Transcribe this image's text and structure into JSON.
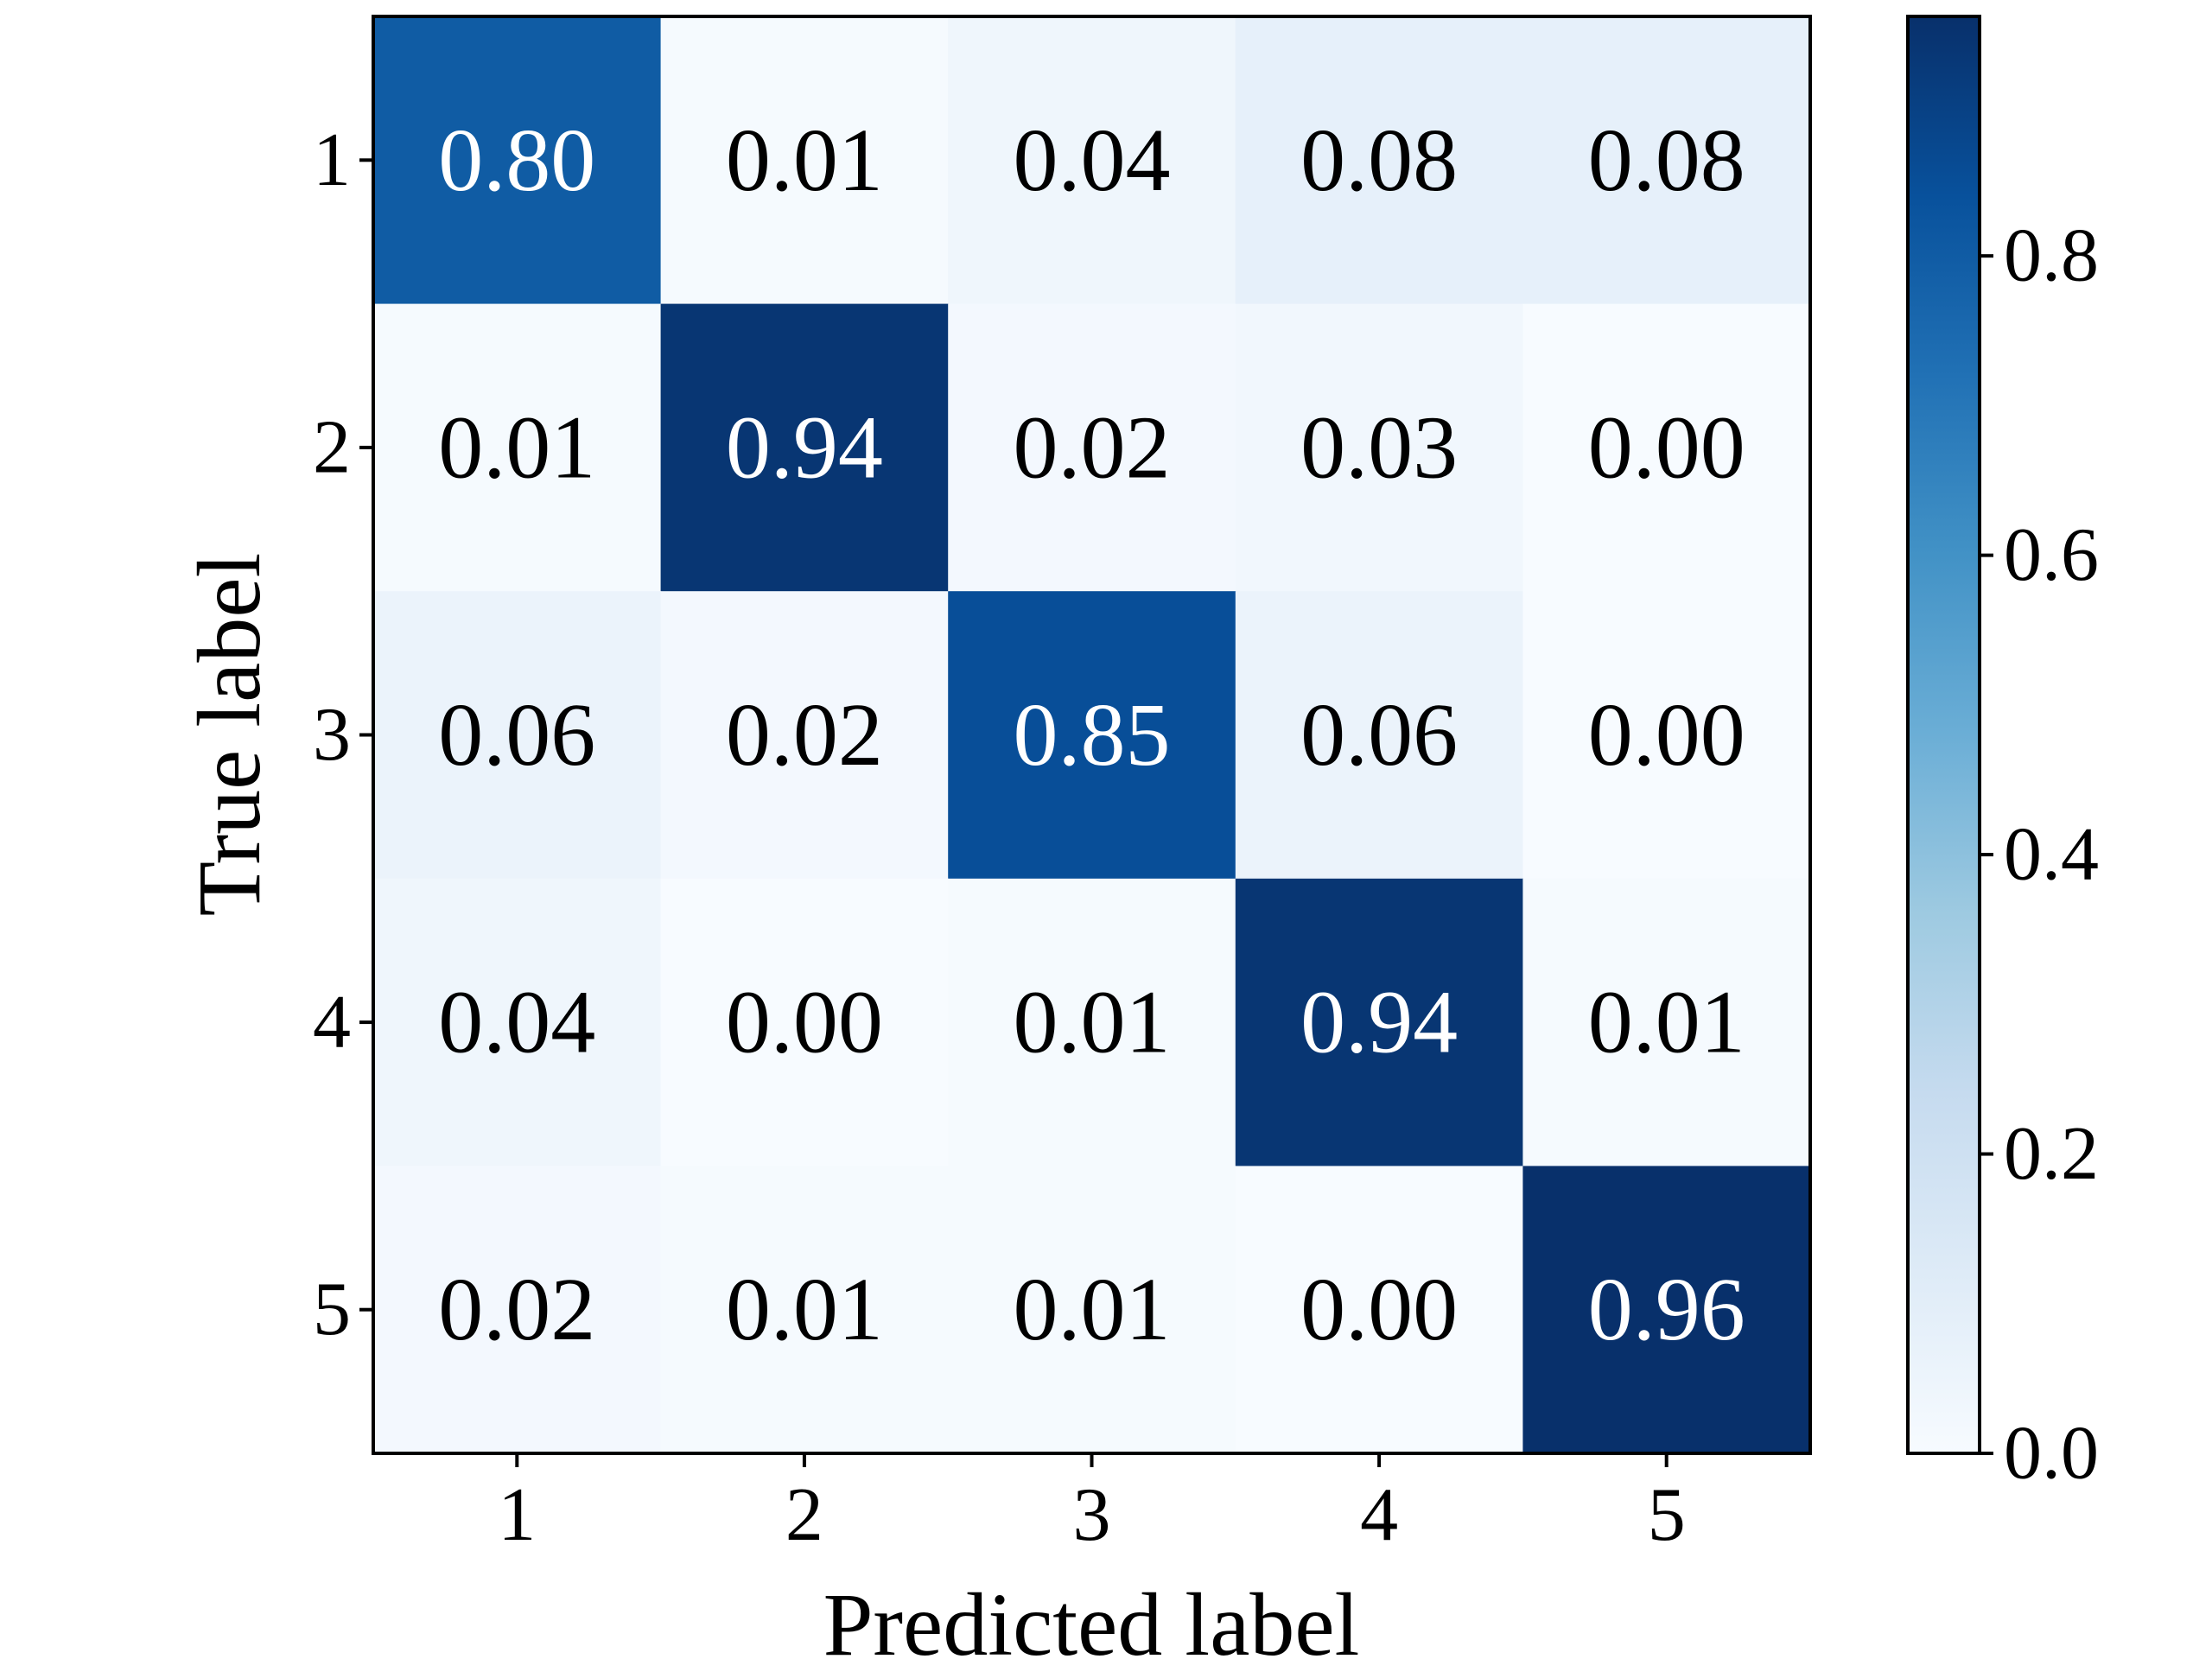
{
  "chart_data": {
    "type": "heatmap",
    "title": "",
    "xlabel": "Predicted label",
    "ylabel": "True label",
    "x_categories": [
      "1",
      "2",
      "3",
      "4",
      "5"
    ],
    "y_categories": [
      "1",
      "2",
      "3",
      "4",
      "5"
    ],
    "values": [
      [
        0.8,
        0.01,
        0.04,
        0.08,
        0.08
      ],
      [
        0.01,
        0.94,
        0.02,
        0.03,
        0.0
      ],
      [
        0.06,
        0.02,
        0.85,
        0.06,
        0.0
      ],
      [
        0.04,
        0.0,
        0.01,
        0.94,
        0.01
      ],
      [
        0.02,
        0.01,
        0.01,
        0.0,
        0.96
      ]
    ],
    "value_format": "0.00",
    "colormap": "Blues",
    "colormap_stops": [
      "#f7fbff",
      "#deebf7",
      "#c6dbef",
      "#9ecae1",
      "#6baed6",
      "#4292c6",
      "#2171b5",
      "#08519c",
      "#08306b"
    ],
    "color_range": [
      0.0,
      0.96
    ],
    "colorbar_ticks": [
      "0.0",
      "0.2",
      "0.4",
      "0.6",
      "0.8"
    ],
    "text_color_dark": "#000000",
    "text_color_light": "#ffffff",
    "text_color_threshold": 0.48
  }
}
